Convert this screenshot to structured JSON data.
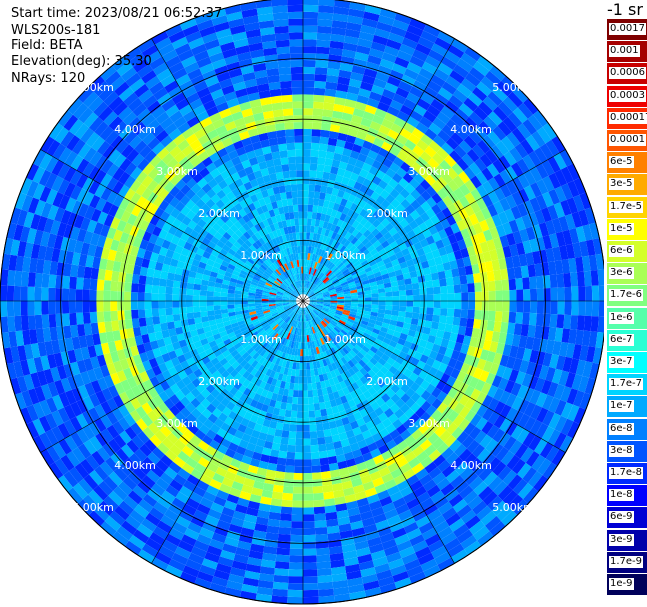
{
  "header": {
    "start_time": "Start time: 2023/08/21 06:52:37",
    "station": "WLS200s-181",
    "field": "Field: BETA",
    "elevation": "Elevation(deg): 35.30",
    "nrays": "NRays: 120"
  },
  "colorbar": {
    "unit": "-1 sr",
    "entries": [
      {
        "label": "0.0017",
        "color": "#7f0000"
      },
      {
        "label": "0.001",
        "color": "#a50000"
      },
      {
        "label": "0.0006",
        "color": "#c80000"
      },
      {
        "label": "0.0003",
        "color": "#ee0000"
      },
      {
        "label": "0.00017",
        "color": "#ff2a00"
      },
      {
        "label": "0.0001",
        "color": "#ff5500"
      },
      {
        "label": "6e-5",
        "color": "#ff8000"
      },
      {
        "label": "3e-5",
        "color": "#ffaa00"
      },
      {
        "label": "1.7e-5",
        "color": "#ffd400"
      },
      {
        "label": "1e-5",
        "color": "#ffff00"
      },
      {
        "label": "6e-6",
        "color": "#d4ff2a"
      },
      {
        "label": "3e-6",
        "color": "#aaff55"
      },
      {
        "label": "1.7e-6",
        "color": "#80ff80"
      },
      {
        "label": "1e-6",
        "color": "#55ffaa"
      },
      {
        "label": "6e-7",
        "color": "#2affd4"
      },
      {
        "label": "3e-7",
        "color": "#00ffff"
      },
      {
        "label": "1.7e-7",
        "color": "#00d4ff"
      },
      {
        "label": "1e-7",
        "color": "#00aaff"
      },
      {
        "label": "6e-8",
        "color": "#0080ff"
      },
      {
        "label": "3e-8",
        "color": "#0055ff"
      },
      {
        "label": "1.7e-8",
        "color": "#002aff"
      },
      {
        "label": "1e-8",
        "color": "#0000ff"
      },
      {
        "label": "6e-9",
        "color": "#0000d4"
      },
      {
        "label": "3e-9",
        "color": "#0000aa"
      },
      {
        "label": "1.7e-9",
        "color": "#000080"
      },
      {
        "label": "1e-9",
        "color": "#00005a"
      }
    ]
  },
  "chart_data": {
    "type": "heatmap",
    "projection": "polar (PPI)",
    "field": "BETA",
    "elevation_deg": 35.3,
    "nrays": 120,
    "range_rings_km": [
      "1.00km",
      "2.00km",
      "3.00km",
      "4.00km",
      "5.00km"
    ],
    "range_ring_values_km": [
      1,
      2,
      3,
      4,
      5
    ],
    "max_range_km": 5.0,
    "features": [
      {
        "name": "near-field echoes",
        "range_km": [
          0.4,
          0.8
        ],
        "value_range": [
          0.0001,
          0.0017
        ]
      },
      {
        "name": "aerosol ring",
        "range_km": [
          2.8,
          3.3
        ],
        "value_range": [
          1.7e-06,
          1.7e-05
        ]
      },
      {
        "name": "background",
        "range_km": [
          3.3,
          5.0
        ],
        "value_range": [
          3e-08,
          3e-07
        ]
      }
    ]
  }
}
